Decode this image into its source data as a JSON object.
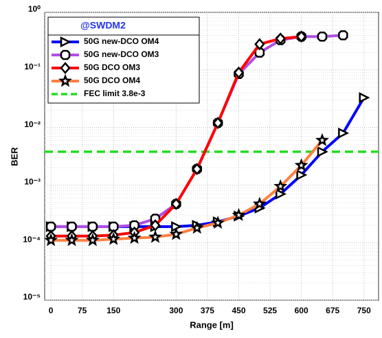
{
  "chart_data": {
    "type": "line",
    "xlabel": "Range [m]",
    "ylabel": "BER",
    "legend_title": "@SWDM2",
    "legend": "upper left",
    "log_y": true,
    "grid": true,
    "x": [
      0,
      50,
      100,
      150,
      200,
      250,
      300,
      350,
      400,
      450,
      500,
      550,
      600,
      650,
      700,
      750
    ],
    "xlim": [
      -15,
      785
    ],
    "xticks": [
      0,
      75,
      150,
      300,
      375,
      450,
      525,
      600,
      675,
      750
    ],
    "ylim": [
      1e-05,
      1
    ],
    "yticks": [
      {
        "value": 1e-05,
        "label": "10⁻⁵"
      },
      {
        "value": 0.0001,
        "label": "10⁻⁴"
      },
      {
        "value": 0.001,
        "label": "10⁻³"
      },
      {
        "value": 0.01,
        "label": "10⁻²"
      },
      {
        "value": 0.1,
        "label": "10⁻¹"
      },
      {
        "value": 1,
        "label": "10⁰"
      }
    ],
    "series": [
      {
        "name": "50G new-DCO OM4",
        "color": "#0000ff",
        "marker": "triangle",
        "values": [
          0.00019,
          0.00019,
          0.00019,
          0.00019,
          0.00019,
          0.00019,
          0.00019,
          0.0002,
          0.00023,
          0.00029,
          0.0004,
          0.0007,
          0.0015,
          0.0038,
          0.008,
          0.033
        ]
      },
      {
        "name": "50G new-DCO OM3",
        "color": "#b04ee6",
        "marker": "square",
        "values": [
          0.00019,
          0.00019,
          0.00019,
          0.00019,
          0.0002,
          0.00026,
          0.00047,
          0.0019,
          0.012,
          0.085,
          0.2,
          0.33,
          0.38,
          0.38,
          0.4,
          null
        ]
      },
      {
        "name": "50G DCO OM3",
        "color": "#ff0000",
        "marker": "diamond",
        "values": [
          0.00013,
          0.00013,
          0.00013,
          0.000135,
          0.00015,
          0.0002,
          0.00047,
          0.0019,
          0.012,
          0.09,
          0.28,
          0.35,
          0.38,
          null,
          null,
          null
        ]
      },
      {
        "name": "50G DCO OM4",
        "color": "#ff7f3f",
        "marker": "star",
        "values": [
          0.00011,
          0.00011,
          0.00011,
          0.000115,
          0.00012,
          0.000125,
          0.00014,
          0.00018,
          0.00022,
          0.0003,
          0.00047,
          0.00095,
          0.0022,
          0.006,
          null,
          null
        ]
      }
    ],
    "hlines": [
      {
        "name": "FEC limit 3.8e-3",
        "value": 0.0038,
        "color": "#22dd22"
      }
    ]
  }
}
